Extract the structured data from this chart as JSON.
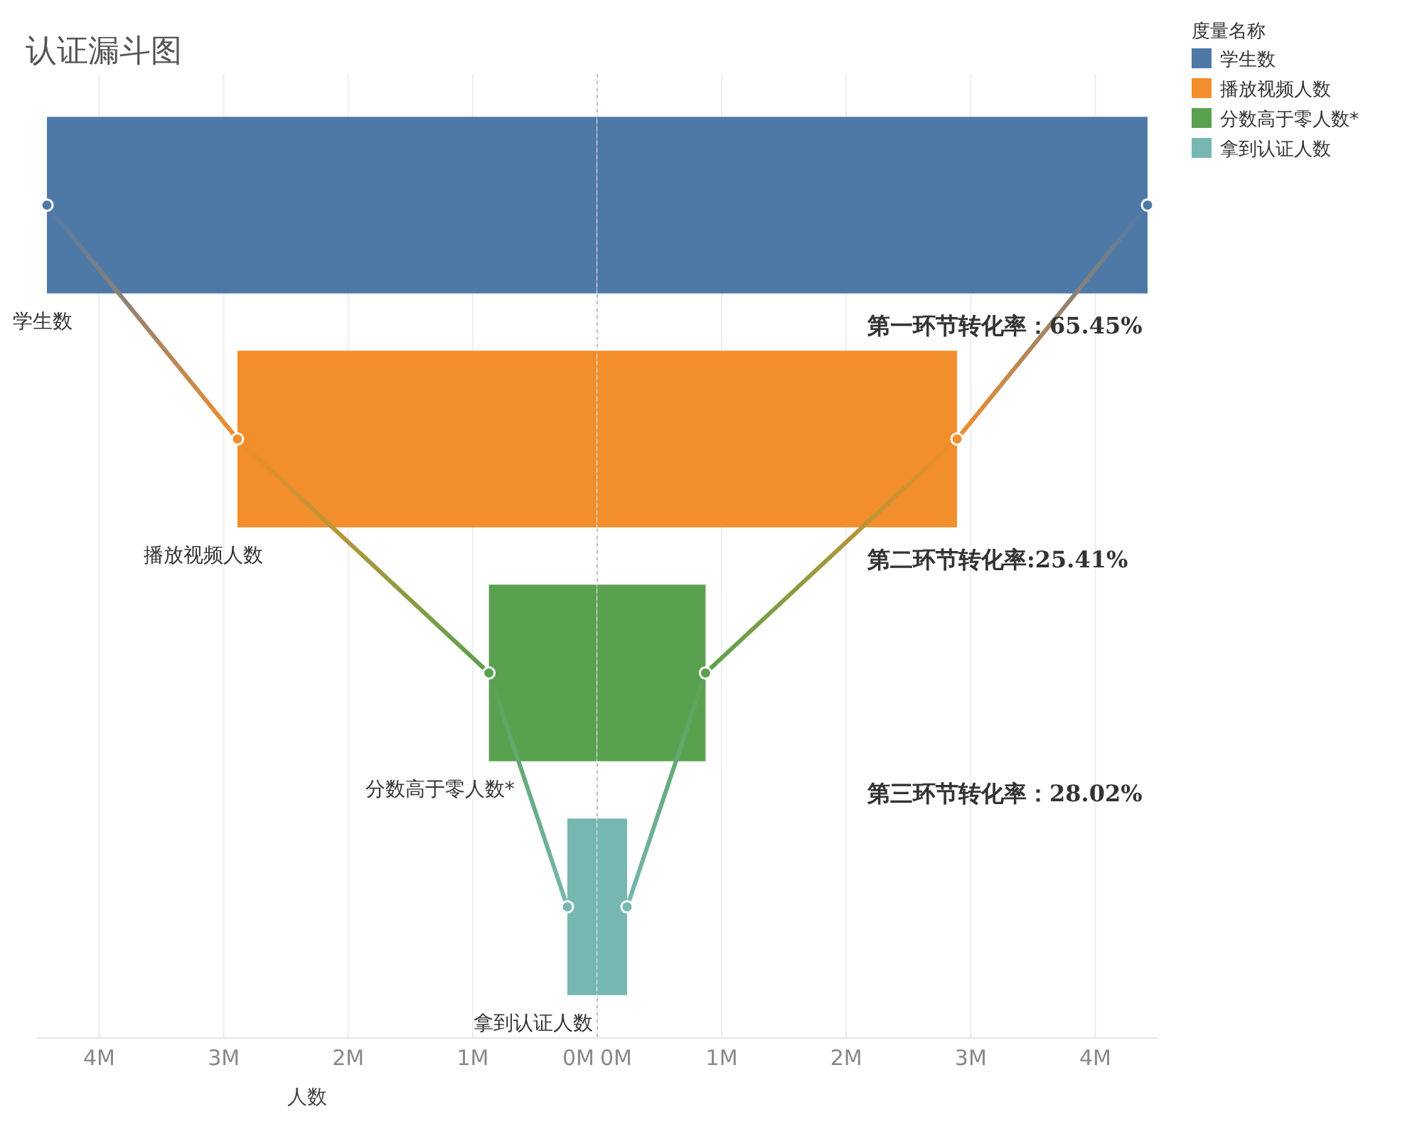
{
  "chart_data": [
    {
      "type": "bar",
      "orientation": "horizontal",
      "title": "认证漏斗图",
      "xlabel": "人数",
      "legend_title": "度量名称",
      "legend": "top right",
      "grid": "x",
      "marker": "circle",
      "categories": [
        "学生数",
        "播放视频人数",
        "分数高于零人数*",
        "拿到认证人数"
      ],
      "series": [
        {
          "name": "学生数",
          "color": "#4e79a7",
          "values": [
            4.42,
            null,
            null,
            null
          ]
        },
        {
          "name": "播放视频人数",
          "color": "#f28e2b",
          "values": [
            null,
            2.89,
            null,
            null
          ]
        },
        {
          "name": "分数高于零人数*",
          "color": "#59a14f",
          "values": [
            null,
            null,
            0.87,
            null
          ]
        },
        {
          "name": "拿到认证人数",
          "color": "#76b7b2",
          "values": [
            null,
            null,
            null,
            0.24
          ]
        },
        {
          "type": "line",
          "values": [
            4.42,
            2.89,
            0.87,
            0.24
          ],
          "colors": [
            "#4e79a7",
            "#f28e2b",
            "#59a14f",
            "#76b7b2"
          ]
        }
      ],
      "xlim": [
        4.5,
        0
      ],
      "xticks": [
        {
          "value": 4,
          "label": "4M"
        },
        {
          "value": 3,
          "label": "3M"
        },
        {
          "value": 2,
          "label": "2M"
        },
        {
          "value": 1,
          "label": "1M"
        },
        {
          "value": 0,
          "label": "0M"
        }
      ]
    },
    {
      "type": "bar",
      "orientation": "horizontal",
      "grid": "x",
      "marker": "circle",
      "categories": [
        null,
        null,
        null,
        null
      ],
      "series": [
        {
          "color": "#4e79a7",
          "values": [
            4.42,
            null,
            null,
            null
          ]
        },
        {
          "color": "#f28e2b",
          "values": [
            null,
            2.89,
            null,
            null
          ]
        },
        {
          "color": "#59a14f",
          "values": [
            null,
            null,
            0.87,
            null
          ]
        },
        {
          "color": "#76b7b2",
          "values": [
            null,
            null,
            null,
            0.24
          ]
        },
        {
          "type": "line",
          "values": [
            4.42,
            2.89,
            0.87,
            0.24
          ],
          "colors": [
            "#4e79a7",
            "#f28e2b",
            "#59a14f",
            "#76b7b2"
          ]
        }
      ],
      "xlim": [
        0,
        4.5
      ],
      "xticks": [
        {
          "value": 0,
          "label": "0M"
        },
        {
          "value": 1,
          "label": "1M"
        },
        {
          "value": 2,
          "label": "2M"
        },
        {
          "value": 3,
          "label": "3M"
        },
        {
          "value": 4,
          "label": "4M"
        }
      ],
      "ref_lines": [
        {
          "axis": "x",
          "value": 0,
          "line_style": "dotted",
          "color": "#bbbbbb"
        }
      ],
      "annotations": [
        "第一环节转化率：65.45%",
        "第二环节转化率:25.41%",
        "第三环节转化率：28.02%"
      ]
    }
  ]
}
